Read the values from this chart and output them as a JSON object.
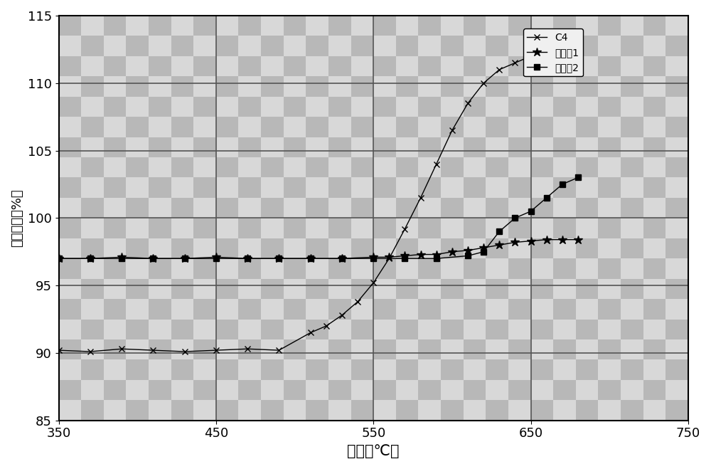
{
  "title": "",
  "xlabel": "温度（℃）",
  "ylabel": "质量变化（%）",
  "xlim": [
    350,
    750
  ],
  "ylim": [
    85,
    115
  ],
  "xticks": [
    350,
    450,
    550,
    650,
    750
  ],
  "yticks": [
    85,
    90,
    95,
    100,
    105,
    110,
    115
  ],
  "plot_bg_color": "#c8c8c8",
  "fig_bg_color": "#ffffff",
  "grid_color": "#555555",
  "C4_x": [
    350,
    370,
    390,
    410,
    430,
    450,
    470,
    490,
    510,
    520,
    530,
    540,
    550,
    560,
    570,
    580,
    590,
    600,
    610,
    620,
    630,
    640,
    650,
    660,
    670,
    680
  ],
  "C4_y": [
    90.2,
    90.1,
    90.3,
    90.2,
    90.1,
    90.2,
    90.3,
    90.2,
    91.5,
    92.0,
    92.8,
    93.8,
    95.2,
    97.0,
    99.2,
    101.5,
    104.0,
    106.5,
    108.5,
    110.0,
    111.0,
    111.5,
    112.0,
    112.2,
    112.1,
    112.0
  ],
  "ex1_x": [
    350,
    370,
    390,
    410,
    430,
    450,
    470,
    490,
    510,
    530,
    550,
    560,
    570,
    580,
    590,
    600,
    610,
    620,
    630,
    640,
    650,
    660,
    670,
    680
  ],
  "ex1_y": [
    97.0,
    97.0,
    97.1,
    97.0,
    97.0,
    97.1,
    97.0,
    97.0,
    97.0,
    97.0,
    97.1,
    97.1,
    97.2,
    97.3,
    97.3,
    97.5,
    97.6,
    97.8,
    98.0,
    98.2,
    98.3,
    98.4,
    98.4,
    98.4
  ],
  "ex2_x": [
    350,
    370,
    390,
    410,
    430,
    450,
    470,
    490,
    510,
    530,
    550,
    570,
    590,
    610,
    620,
    630,
    640,
    650,
    660,
    670,
    680
  ],
  "ex2_y": [
    97.0,
    97.0,
    97.0,
    97.0,
    97.0,
    97.0,
    97.0,
    97.0,
    97.0,
    97.0,
    97.0,
    97.0,
    97.0,
    97.2,
    97.5,
    99.0,
    100.0,
    100.5,
    101.5,
    102.5,
    103.0
  ],
  "line_color": "#000000",
  "legend_labels": [
    "C4",
    "实施例1",
    "实施例2"
  ],
  "C4_marker": "x",
  "ex1_marker": "*",
  "ex2_marker": "s",
  "xlabel_fontsize": 15,
  "ylabel_fontsize": 13,
  "tick_fontsize": 13,
  "legend_fontsize": 13
}
